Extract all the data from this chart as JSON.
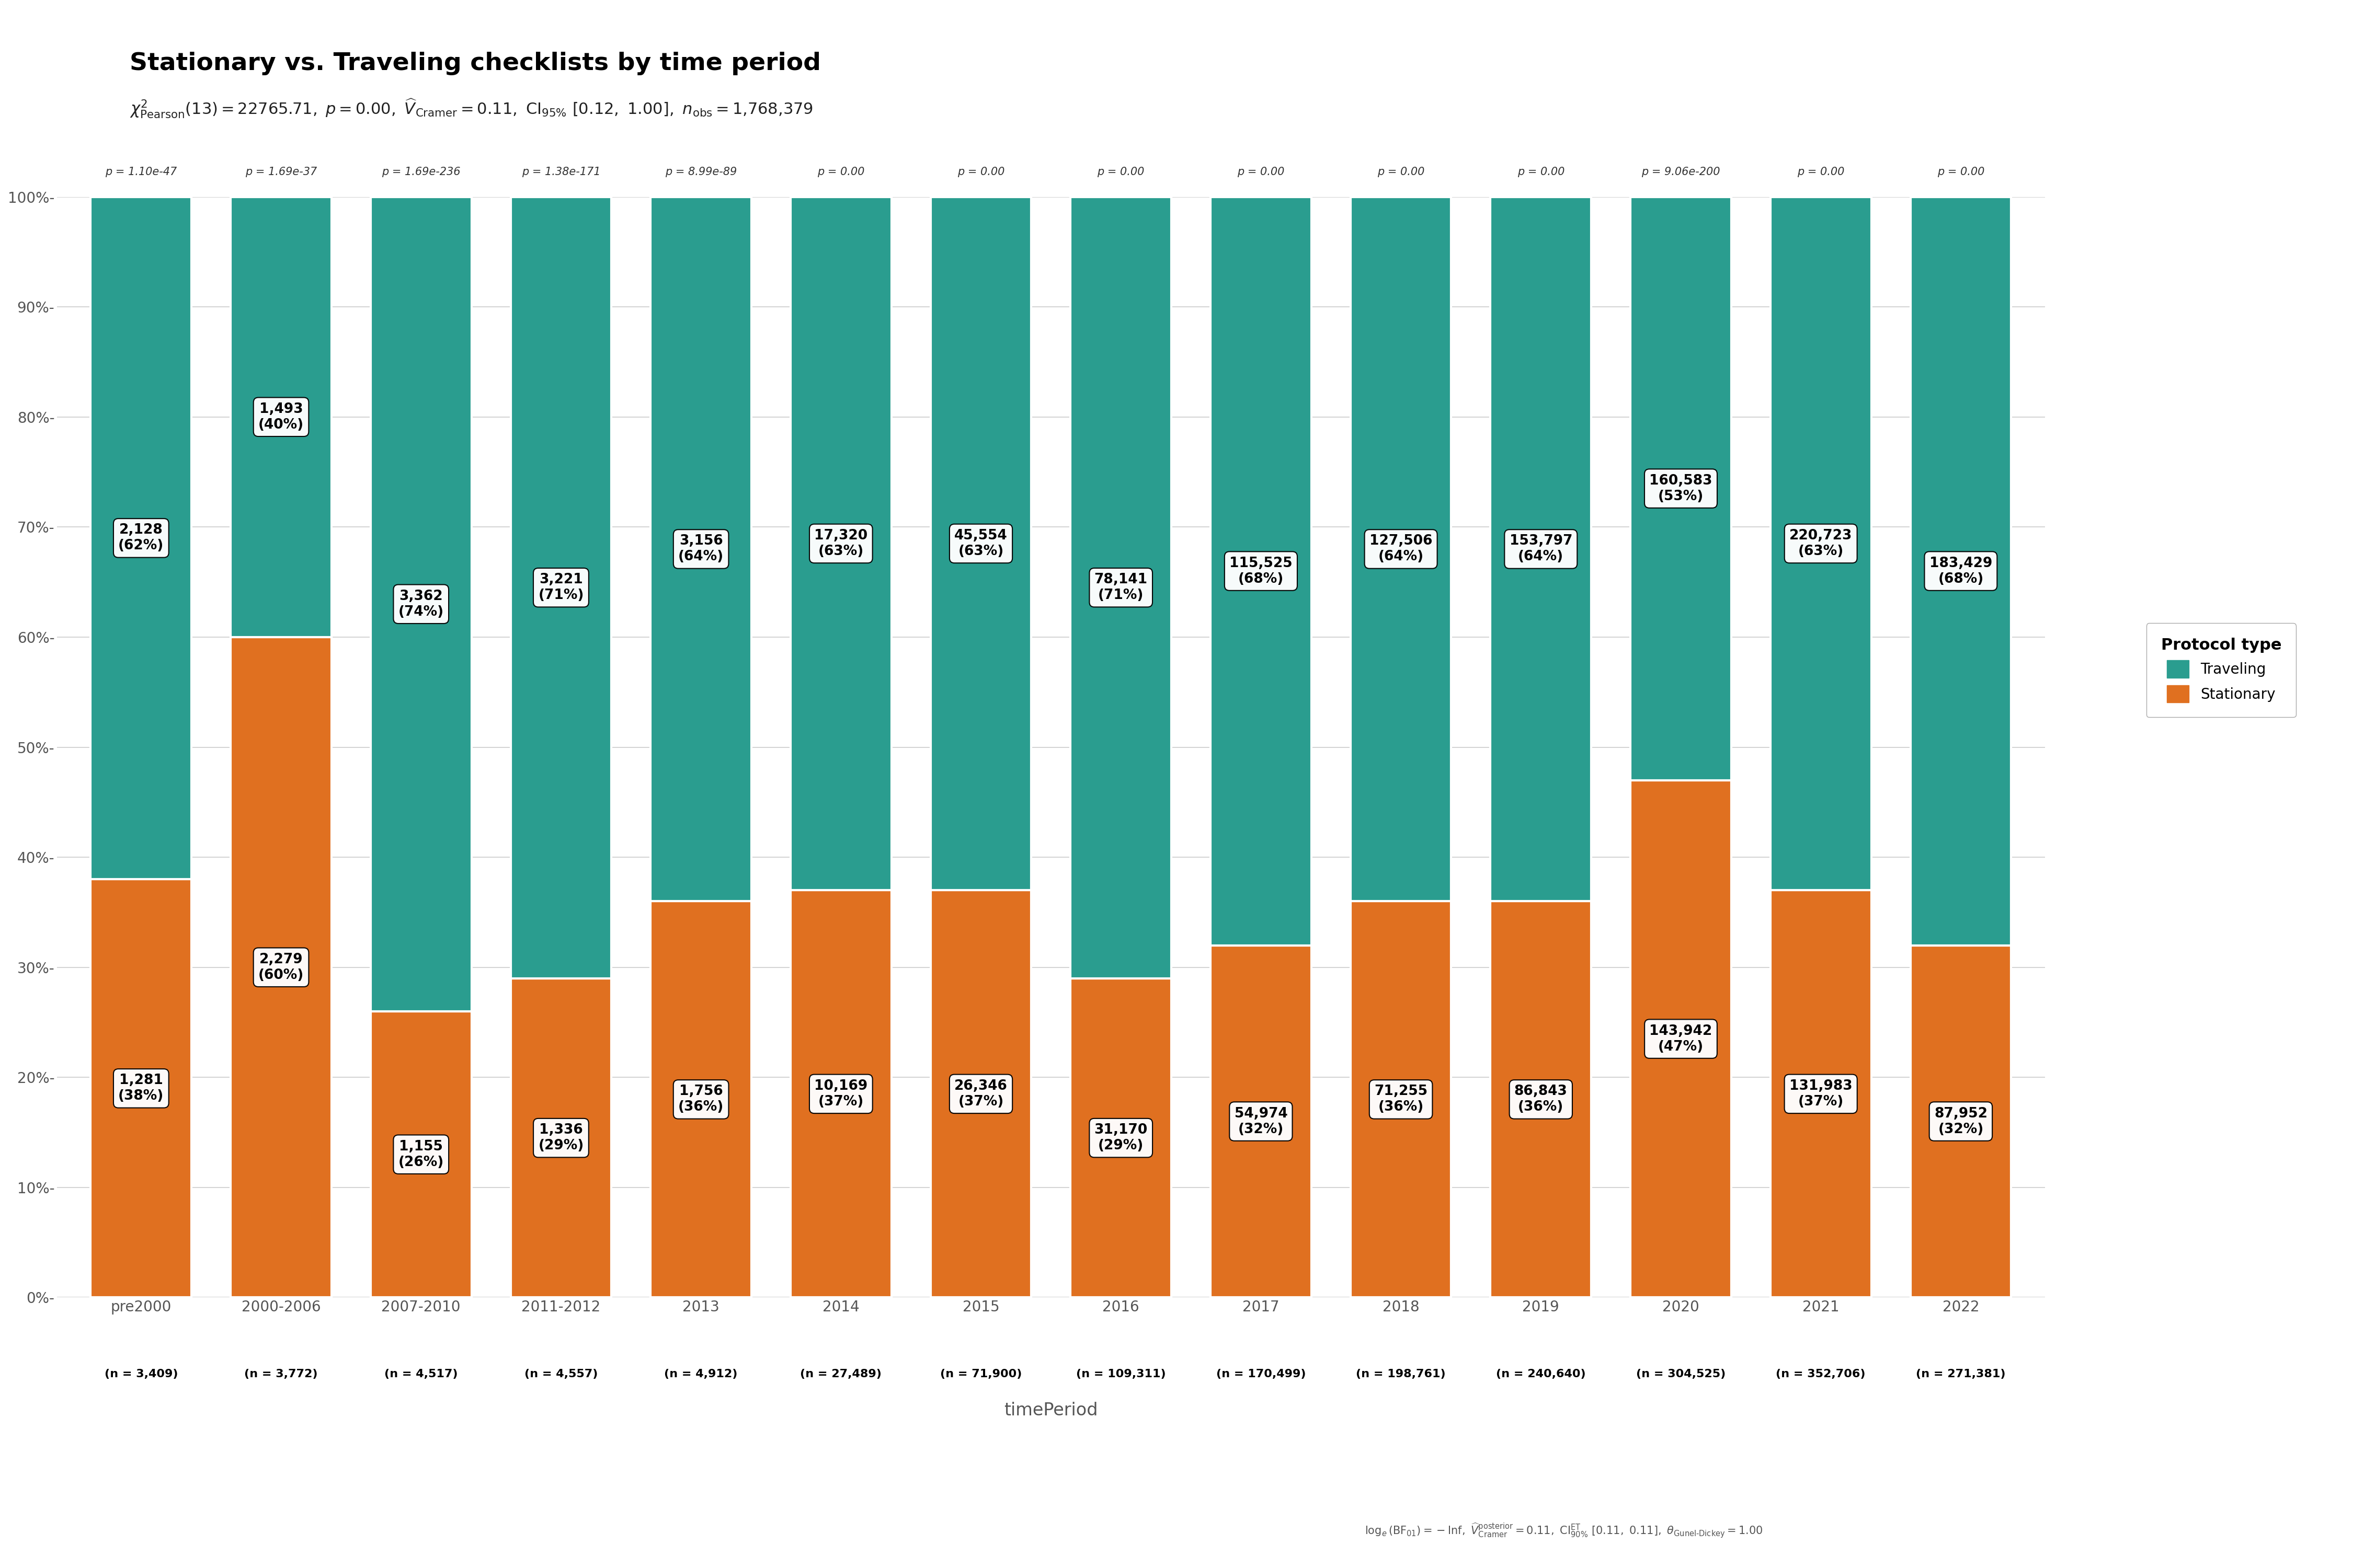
{
  "title": "Stationary vs. Traveling checklists by time period",
  "categories": [
    "pre2000",
    "2000-2006",
    "2007-2010",
    "2011-2012",
    "2013",
    "2014",
    "2015",
    "2016",
    "2017",
    "2018",
    "2019",
    "2020",
    "2021",
    "2022"
  ],
  "n_values": [
    "(n = 3,409)",
    "(n = 3,772)",
    "(n = 4,517)",
    "(n = 4,557)",
    "(n = 4,912)",
    "(n = 27,489)",
    "(n = 71,900)",
    "(n = 109,311)",
    "(n = 170,499)",
    "(n = 198,761)",
    "(n = 240,640)",
    "(n = 304,525)",
    "(n = 352,706)",
    "(n = 271,381)"
  ],
  "stationary_counts": [
    "1,281",
    "2,279",
    "1,155",
    "1,336",
    "1,756",
    "10,169",
    "26,346",
    "31,170",
    "54,974",
    "71,255",
    "86,843",
    "143,942",
    "131,983",
    "87,952"
  ],
  "traveling_counts": [
    "2,128",
    "1,493",
    "3,362",
    "3,221",
    "3,156",
    "17,320",
    "45,554",
    "78,141",
    "115,525",
    "127,506",
    "153,797",
    "160,583",
    "220,723",
    "183,429"
  ],
  "stationary_pct": [
    38,
    60,
    26,
    29,
    36,
    37,
    37,
    29,
    32,
    36,
    36,
    47,
    37,
    32
  ],
  "traveling_pct": [
    62,
    40,
    74,
    71,
    64,
    63,
    63,
    71,
    68,
    64,
    64,
    53,
    63,
    68
  ],
  "p_values": [
    "p = 1.10e-47",
    "p = 1.69e-37",
    "p = 1.69e-236",
    "p = 1.38e-171",
    "p = 8.99e-89",
    "p = 0.00",
    "p = 0.00",
    "p = 0.00",
    "p = 0.00",
    "p = 0.00",
    "p = 0.00",
    "p = 9.06e-200",
    "p = 0.00",
    "p = 0.00"
  ],
  "traveling_color": "#2a9d8f",
  "stationary_color": "#e07020",
  "background_color": "#ffffff",
  "bar_edge_color": "#ffffff",
  "xlabel": "timePeriod",
  "legend_title": "Protocol type",
  "legend_labels": [
    "Traveling",
    "Stationary"
  ]
}
